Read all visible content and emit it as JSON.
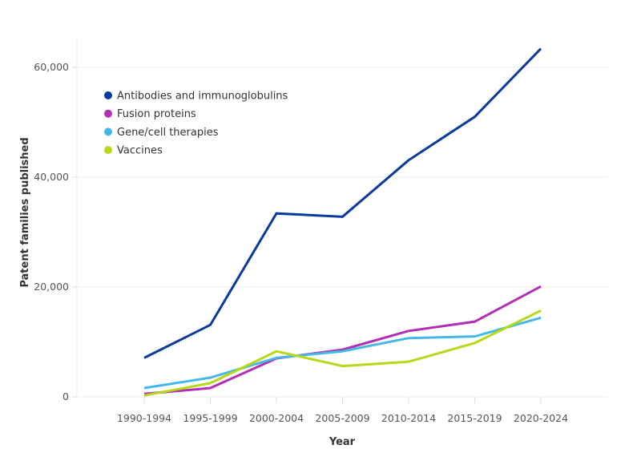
{
  "chart_data": {
    "type": "line",
    "title": "",
    "xlabel": "Year",
    "ylabel": "Patent families published",
    "categories": [
      "1990-1994",
      "1995-1999",
      "2000-2004",
      "2005-2009",
      "2010-2014",
      "2015-2019",
      "2020-2024"
    ],
    "ylim": [
      0,
      65000
    ],
    "yticks": [
      0,
      20000,
      40000,
      60000
    ],
    "ytick_labels": [
      "0",
      "20,000",
      "40,000",
      "60,000"
    ],
    "grid": "horizontal",
    "legend_position": "top-left",
    "series": [
      {
        "name": "Antibodies and immunoglobulins",
        "color": "#0a3a9c",
        "values": [
          7100,
          13100,
          33400,
          32800,
          43100,
          51000,
          63400
        ]
      },
      {
        "name": "Fusion proteins",
        "color": "#b12fb5",
        "values": [
          550,
          1600,
          7000,
          8600,
          12000,
          13700,
          20100
        ]
      },
      {
        "name": "Gene/cell therapies",
        "color": "#46b8e8",
        "values": [
          1600,
          3500,
          7100,
          8300,
          10700,
          11000,
          14400
        ]
      },
      {
        "name": "Vaccines",
        "color": "#b6d816",
        "values": [
          250,
          2500,
          8300,
          5600,
          6400,
          9800,
          15700
        ]
      }
    ]
  }
}
